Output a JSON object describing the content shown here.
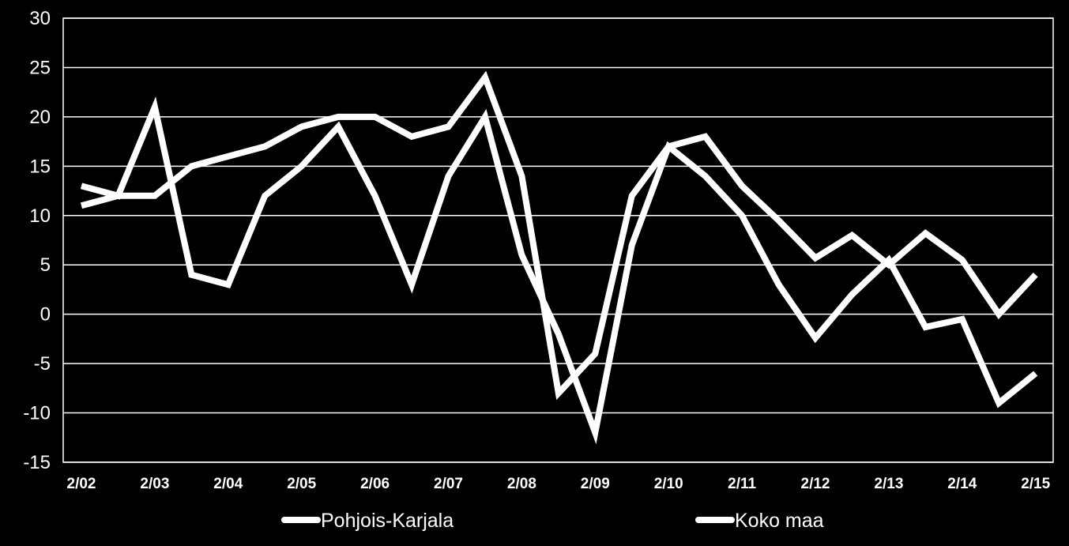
{
  "chart_data": {
    "type": "line",
    "title": "",
    "xlabel": "",
    "ylabel": "",
    "ylim": [
      -15,
      30
    ],
    "yticks": [
      "30",
      "25",
      "20",
      "15",
      "10",
      "5",
      "0",
      "-5",
      "-10",
      "-15"
    ],
    "ytick_values": [
      30,
      25,
      20,
      15,
      10,
      5,
      0,
      -5,
      -10,
      -15
    ],
    "xtick_labels": [
      "2/02",
      "2/03",
      "2/04",
      "2/05",
      "2/06",
      "2/07",
      "2/08",
      "2/09",
      "2/10",
      "2/11",
      "2/12",
      "2/13",
      "2/14",
      "2/15"
    ],
    "point_count": 27,
    "grid": true,
    "legend_position": "bottom",
    "colors": {
      "background": "#000000",
      "plot_area": "#000000",
      "lines": "#ffffff",
      "grid": "#ffffff",
      "text": "#ffffff"
    },
    "series": [
      {
        "name": "Pohjois-Karjala",
        "values": [
          13,
          12,
          21,
          4,
          3,
          12,
          15,
          19,
          12,
          3,
          14,
          20,
          6,
          -2,
          -12,
          7,
          17,
          14,
          10,
          3,
          -2.4,
          2,
          5.5,
          -1.3,
          -0.5,
          -9,
          -6
        ]
      },
      {
        "name": "Koko maa",
        "values": [
          11,
          12,
          12,
          15,
          16,
          17,
          19,
          20,
          20,
          18,
          19,
          24,
          14,
          -8,
          -4,
          12,
          17,
          18,
          13,
          9.5,
          5.7,
          8,
          5,
          8.2,
          5.5,
          0,
          4
        ]
      }
    ]
  }
}
